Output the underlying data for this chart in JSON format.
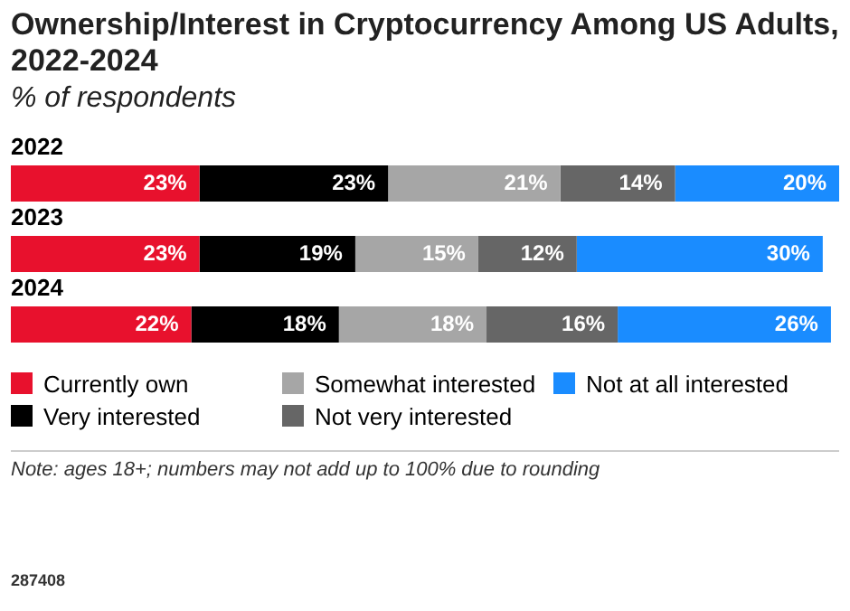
{
  "chart_data": {
    "type": "bar",
    "orientation": "horizontal",
    "stacked": true,
    "title": "Ownership/Interest in Cryptocurrency Among US Adults, 2022-2024",
    "subtitle": "% of respondents",
    "categories": [
      "2022",
      "2023",
      "2024"
    ],
    "series": [
      {
        "name": "Currently own",
        "color": "#e8112d",
        "values": [
          23,
          23,
          22
        ],
        "value_labels": [
          "23%",
          "23%",
          "22%"
        ]
      },
      {
        "name": "Very interested",
        "color": "#000000",
        "values": [
          23,
          19,
          18
        ],
        "value_labels": [
          "23%",
          "19%",
          "18%"
        ]
      },
      {
        "name": "Somewhat interested",
        "color": "#a6a6a6",
        "values": [
          21,
          15,
          18
        ],
        "value_labels": [
          "21%",
          "15%",
          "18%"
        ]
      },
      {
        "name": "Not very interested",
        "color": "#666666",
        "values": [
          14,
          12,
          16
        ],
        "value_labels": [
          "14%",
          "12%",
          "16%"
        ]
      },
      {
        "name": "Not at all interested",
        "color": "#1a8cff",
        "values": [
          20,
          30,
          26
        ],
        "value_labels": [
          "20%",
          "30%",
          "26%"
        ]
      }
    ],
    "xlim": [
      0,
      101
    ],
    "tick_labels": "y",
    "legend": "bottom",
    "annotations": [
      "Note: ages 18+; numbers may not add up to 100% due to rounding",
      "287408"
    ]
  }
}
